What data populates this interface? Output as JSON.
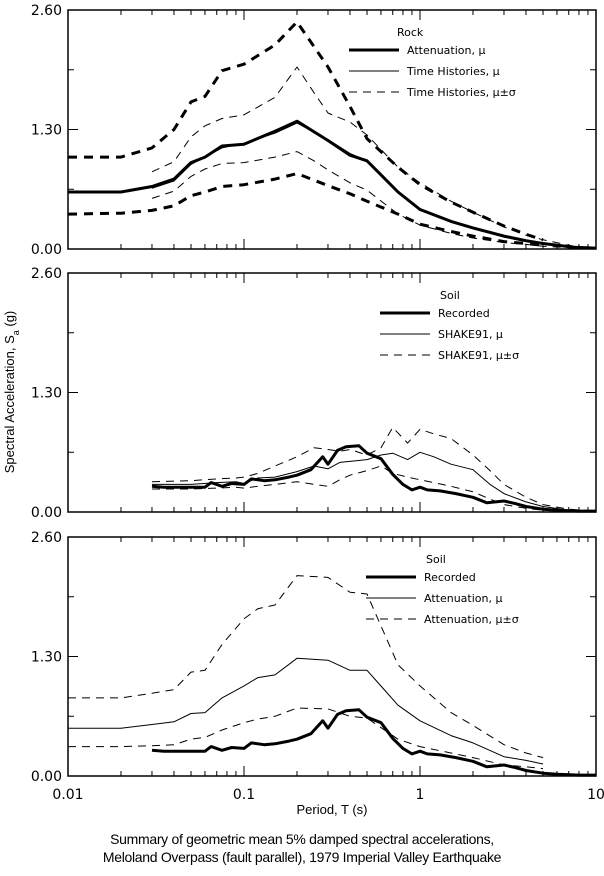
{
  "chart_data": [
    {
      "type": "line",
      "panel": "top",
      "xscale": "log",
      "xlim": [
        0.01,
        10
      ],
      "ylim": [
        0,
        2.6
      ],
      "yticks": [
        "0.00",
        "1.30",
        "2.60"
      ],
      "legend": {
        "title": "Rock",
        "placement": "top-right",
        "entries": [
          {
            "label": "Attenuation, μ",
            "style": "thick-solid"
          },
          {
            "label": "Time Histories, μ",
            "style": "thin-solid"
          },
          {
            "label": "Time Histories, μ±σ",
            "style": "thin-dashed"
          }
        ]
      },
      "series": [
        {
          "name": "Attenuation, μ",
          "style": "thick-solid",
          "x": [
            0.01,
            0.02,
            0.03,
            0.04,
            0.05,
            0.06,
            0.075,
            0.1,
            0.15,
            0.2,
            0.3,
            0.4,
            0.5,
            0.75,
            1.0,
            1.5,
            2.0,
            3.0,
            4.0,
            5.0,
            7.5,
            10.0
          ],
          "y": [
            0.62,
            0.62,
            0.68,
            0.76,
            0.94,
            1.0,
            1.12,
            1.14,
            1.28,
            1.39,
            1.18,
            1.02,
            0.96,
            0.62,
            0.43,
            0.3,
            0.23,
            0.14,
            0.09,
            0.06,
            0.02,
            0.01
          ]
        },
        {
          "name": "Attenuation, μ+σ",
          "style": "thick-dashed",
          "x": [
            0.01,
            0.02,
            0.03,
            0.04,
            0.05,
            0.06,
            0.075,
            0.1,
            0.15,
            0.2,
            0.3,
            0.4,
            0.5,
            0.75,
            1.0,
            1.5,
            2.0,
            3.0,
            4.0,
            5.0
          ],
          "y": [
            1.0,
            1.0,
            1.1,
            1.3,
            1.6,
            1.66,
            1.94,
            2.01,
            2.22,
            2.47,
            1.98,
            1.55,
            1.2,
            0.89,
            0.7,
            0.51,
            0.4,
            0.25,
            0.16,
            0.1
          ]
        },
        {
          "name": "Attenuation, μ-σ",
          "style": "thick-dashed",
          "x": [
            0.01,
            0.02,
            0.03,
            0.04,
            0.05,
            0.06,
            0.075,
            0.1,
            0.15,
            0.2,
            0.3,
            0.4,
            0.5,
            0.75,
            1.0,
            1.5,
            2.0,
            3.0,
            4.0,
            5.0
          ],
          "y": [
            0.38,
            0.39,
            0.42,
            0.47,
            0.58,
            0.62,
            0.68,
            0.7,
            0.76,
            0.82,
            0.69,
            0.6,
            0.52,
            0.38,
            0.27,
            0.19,
            0.14,
            0.08,
            0.06,
            0.04
          ]
        },
        {
          "name": "Time Histories, μ",
          "style": "thin-solid",
          "x": [
            0.03,
            0.04,
            0.05,
            0.06,
            0.075,
            0.1,
            0.15,
            0.2,
            0.3,
            0.4,
            0.5,
            0.75,
            1.0,
            1.5,
            2.0,
            3.0,
            4.0,
            5.0,
            7.5,
            10.0
          ],
          "y": [
            0.66,
            0.74,
            0.92,
            1.0,
            1.1,
            1.15,
            1.26,
            1.37,
            1.19,
            1.04,
            0.96,
            0.63,
            0.44,
            0.31,
            0.22,
            0.13,
            0.08,
            0.05,
            0.02,
            0.01
          ]
        },
        {
          "name": "Time Histories, μ+σ",
          "style": "thin-dashed",
          "x": [
            0.03,
            0.04,
            0.05,
            0.06,
            0.075,
            0.1,
            0.15,
            0.2,
            0.25,
            0.3,
            0.4,
            0.5,
            0.75,
            1.0,
            1.5,
            2.0,
            3.0,
            4.0,
            5.0,
            7.5,
            10.0
          ],
          "y": [
            0.84,
            0.95,
            1.22,
            1.34,
            1.42,
            1.46,
            1.65,
            1.98,
            1.7,
            1.48,
            1.38,
            1.24,
            0.89,
            0.72,
            0.52,
            0.4,
            0.24,
            0.15,
            0.1,
            0.03,
            0.01
          ]
        },
        {
          "name": "Time Histories, μ-σ",
          "style": "thin-dashed",
          "x": [
            0.03,
            0.04,
            0.05,
            0.06,
            0.075,
            0.1,
            0.15,
            0.2,
            0.25,
            0.3,
            0.4,
            0.5,
            0.75,
            1.0,
            1.5,
            2.0,
            3.0,
            4.0,
            5.0,
            7.5,
            10.0
          ],
          "y": [
            0.55,
            0.63,
            0.79,
            0.87,
            0.93,
            0.94,
            1.0,
            1.06,
            0.96,
            0.86,
            0.72,
            0.64,
            0.38,
            0.26,
            0.17,
            0.12,
            0.07,
            0.05,
            0.03,
            0.01,
            0.0
          ]
        }
      ]
    },
    {
      "type": "line",
      "panel": "middle",
      "xscale": "log",
      "xlim": [
        0.01,
        10
      ],
      "ylim": [
        0,
        2.6
      ],
      "yticks": [
        "0.00",
        "1.30",
        "2.60"
      ],
      "ylabel": "Spectral Acceleration, S_a (g)",
      "legend": {
        "title": "Soil",
        "placement": "top-right",
        "entries": [
          {
            "label": "Recorded",
            "style": "thick-solid"
          },
          {
            "label": "SHAKE91, μ",
            "style": "thin-solid"
          },
          {
            "label": "SHAKE91, μ±σ",
            "style": "thin-dashed"
          }
        ]
      },
      "series": [
        {
          "name": "Recorded",
          "style": "thick-solid",
          "x": [
            0.03,
            0.035,
            0.045,
            0.06,
            0.065,
            0.075,
            0.085,
            0.1,
            0.11,
            0.13,
            0.15,
            0.18,
            0.2,
            0.24,
            0.28,
            0.3,
            0.34,
            0.38,
            0.45,
            0.5,
            0.6,
            0.7,
            0.8,
            0.9,
            1.0,
            1.1,
            1.3,
            1.6,
            2.0,
            2.4,
            3.0,
            3.5,
            4.0,
            5.0,
            6.0,
            8.0,
            10.0
          ],
          "y": [
            0.28,
            0.27,
            0.27,
            0.27,
            0.32,
            0.28,
            0.31,
            0.3,
            0.36,
            0.34,
            0.35,
            0.38,
            0.4,
            0.46,
            0.6,
            0.52,
            0.67,
            0.71,
            0.72,
            0.64,
            0.58,
            0.41,
            0.3,
            0.24,
            0.27,
            0.24,
            0.23,
            0.2,
            0.16,
            0.1,
            0.12,
            0.09,
            0.06,
            0.03,
            0.02,
            0.01,
            0.01
          ]
        },
        {
          "name": "SHAKE91, μ",
          "style": "thin-solid",
          "x": [
            0.03,
            0.05,
            0.07,
            0.09,
            0.1,
            0.12,
            0.15,
            0.2,
            0.25,
            0.3,
            0.35,
            0.4,
            0.5,
            0.6,
            0.7,
            0.85,
            1.0,
            1.2,
            1.5,
            2.0,
            2.5,
            3.0,
            4.0,
            5.0,
            7.0,
            10.0
          ],
          "y": [
            0.3,
            0.3,
            0.32,
            0.33,
            0.31,
            0.37,
            0.38,
            0.44,
            0.5,
            0.47,
            0.54,
            0.55,
            0.57,
            0.62,
            0.64,
            0.57,
            0.65,
            0.6,
            0.52,
            0.46,
            0.3,
            0.2,
            0.11,
            0.06,
            0.02,
            0.01
          ]
        },
        {
          "name": "SHAKE91, μ+σ",
          "style": "thin-dashed",
          "x": [
            0.03,
            0.05,
            0.07,
            0.09,
            0.1,
            0.12,
            0.15,
            0.2,
            0.25,
            0.3,
            0.35,
            0.4,
            0.5,
            0.6,
            0.7,
            0.85,
            1.0,
            1.2,
            1.5,
            2.0,
            2.5,
            3.0,
            4.0,
            5.0,
            7.0,
            10.0
          ],
          "y": [
            0.33,
            0.34,
            0.36,
            0.37,
            0.38,
            0.42,
            0.5,
            0.6,
            0.7,
            0.68,
            0.66,
            0.68,
            0.62,
            0.7,
            0.92,
            0.75,
            0.9,
            0.85,
            0.8,
            0.62,
            0.45,
            0.3,
            0.16,
            0.08,
            0.03,
            0.01
          ]
        },
        {
          "name": "SHAKE91, μ-σ",
          "style": "thin-dashed",
          "x": [
            0.03,
            0.05,
            0.07,
            0.09,
            0.1,
            0.12,
            0.15,
            0.2,
            0.25,
            0.3,
            0.35,
            0.4,
            0.5,
            0.6,
            0.7,
            0.85,
            1.0,
            1.2,
            1.5,
            2.0,
            2.5,
            3.0,
            4.0,
            5.0,
            7.0,
            10.0
          ],
          "y": [
            0.25,
            0.25,
            0.26,
            0.27,
            0.26,
            0.28,
            0.3,
            0.33,
            0.3,
            0.28,
            0.35,
            0.4,
            0.45,
            0.5,
            0.42,
            0.38,
            0.35,
            0.32,
            0.28,
            0.22,
            0.14,
            0.08,
            0.04,
            0.02,
            0.01,
            0.0
          ]
        }
      ]
    },
    {
      "type": "line",
      "panel": "bottom",
      "xscale": "log",
      "xlim": [
        0.01,
        10
      ],
      "ylim": [
        0,
        2.6
      ],
      "xticks": [
        "0.01",
        "0.1",
        "1",
        "10"
      ],
      "yticks": [
        "0.00",
        "1.30",
        "2.60"
      ],
      "xlabel": "Period, T (s)",
      "legend": {
        "title": "Soil",
        "placement": "top-right",
        "entries": [
          {
            "label": "Recorded",
            "style": "thick-solid"
          },
          {
            "label": "Attenuation, μ",
            "style": "thin-solid"
          },
          {
            "label": "Attenuation, μ±σ",
            "style": "thin-dashed"
          }
        ]
      },
      "series": [
        {
          "name": "Recorded",
          "style": "thick-solid",
          "x": [
            0.03,
            0.035,
            0.045,
            0.06,
            0.065,
            0.075,
            0.085,
            0.1,
            0.11,
            0.13,
            0.15,
            0.18,
            0.2,
            0.24,
            0.28,
            0.3,
            0.34,
            0.38,
            0.45,
            0.5,
            0.6,
            0.7,
            0.8,
            0.9,
            1.0,
            1.1,
            1.3,
            1.6,
            2.0,
            2.4,
            3.0,
            3.5,
            4.0,
            5.0,
            6.0,
            8.0,
            10.0
          ],
          "y": [
            0.28,
            0.27,
            0.27,
            0.27,
            0.32,
            0.28,
            0.31,
            0.3,
            0.36,
            0.34,
            0.35,
            0.38,
            0.4,
            0.46,
            0.6,
            0.52,
            0.67,
            0.71,
            0.72,
            0.64,
            0.58,
            0.41,
            0.3,
            0.24,
            0.27,
            0.24,
            0.23,
            0.2,
            0.16,
            0.1,
            0.12,
            0.09,
            0.06,
            0.03,
            0.02,
            0.01,
            0.01
          ]
        },
        {
          "name": "Attenuation, μ",
          "style": "thin-solid",
          "x": [
            0.01,
            0.02,
            0.03,
            0.04,
            0.05,
            0.06,
            0.075,
            0.1,
            0.12,
            0.15,
            0.2,
            0.3,
            0.4,
            0.5,
            0.75,
            1.0,
            1.5,
            2.0,
            3.0,
            4.0,
            5.0
          ],
          "y": [
            0.52,
            0.52,
            0.56,
            0.59,
            0.68,
            0.69,
            0.85,
            0.98,
            1.07,
            1.1,
            1.28,
            1.26,
            1.15,
            1.15,
            0.77,
            0.6,
            0.44,
            0.36,
            0.21,
            0.17,
            0.13
          ]
        },
        {
          "name": "Attenuation, μ+σ",
          "style": "thin-dashed",
          "x": [
            0.01,
            0.02,
            0.03,
            0.04,
            0.05,
            0.06,
            0.075,
            0.1,
            0.12,
            0.15,
            0.2,
            0.3,
            0.4,
            0.5,
            0.75,
            1.0,
            1.5,
            2.0,
            3.0,
            4.0,
            5.0
          ],
          "y": [
            0.85,
            0.85,
            0.9,
            0.94,
            1.13,
            1.15,
            1.43,
            1.71,
            1.82,
            1.86,
            2.18,
            2.16,
            2.0,
            1.98,
            1.21,
            0.98,
            0.69,
            0.55,
            0.34,
            0.25,
            0.2
          ]
        },
        {
          "name": "Attenuation, μ-σ",
          "style": "thin-dashed",
          "x": [
            0.01,
            0.02,
            0.03,
            0.04,
            0.05,
            0.06,
            0.075,
            0.1,
            0.12,
            0.15,
            0.2,
            0.3,
            0.4,
            0.5,
            0.75,
            1.0,
            1.5,
            2.0,
            3.0,
            4.0,
            5.0
          ],
          "y": [
            0.32,
            0.32,
            0.33,
            0.34,
            0.4,
            0.42,
            0.5,
            0.58,
            0.62,
            0.65,
            0.74,
            0.73,
            0.65,
            0.63,
            0.4,
            0.32,
            0.25,
            0.2,
            0.12,
            0.1,
            0.08
          ]
        }
      ]
    }
  ],
  "labels": {
    "ylabel_main": "Spectral Acceleration, S",
    "ylabel_sub": "a",
    "ylabel_tail": " (g)",
    "xlabel": "Period, T (s)"
  },
  "caption": {
    "line1": "Summary of geometric mean 5% damped spectral accelerations,",
    "line2": "Meloland Overpass (fault parallel), 1979 Imperial Valley Earthquake"
  }
}
